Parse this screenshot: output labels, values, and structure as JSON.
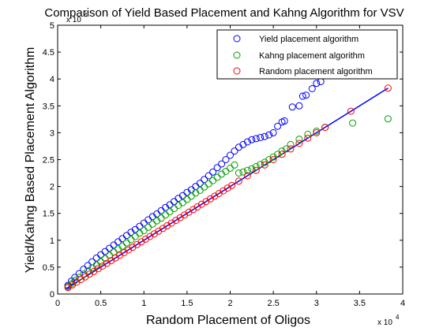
{
  "chart_data": {
    "type": "scatter",
    "title": "Comparison of Yield Based Placement and Kahng Algorithm for VSV",
    "xlabel": "Random Placement of Oligos",
    "ylabel": "Yield/Kahng Based Placement Algorithm",
    "x_multiplier_label": "x 10",
    "x_multiplier_exp": "4",
    "y_multiplier_label": "x 10",
    "y_multiplier_exp": "4",
    "xlim": [
      0,
      40000
    ],
    "ylim": [
      0,
      50000
    ],
    "xticks": [
      0,
      5000,
      10000,
      15000,
      20000,
      25000,
      30000,
      35000,
      40000
    ],
    "xtick_labels": [
      "0",
      "0.5",
      "1",
      "1.5",
      "2",
      "2.5",
      "3",
      "3.5",
      "4"
    ],
    "yticks": [
      0,
      5000,
      10000,
      15000,
      20000,
      25000,
      30000,
      35000,
      40000,
      45000,
      50000
    ],
    "ytick_labels": [
      "0",
      "0.5",
      "1",
      "1.5",
      "2",
      "2.5",
      "3",
      "3.5",
      "4",
      "4.5",
      "5"
    ],
    "grid": false,
    "legend_position": "top-right",
    "series": [
      {
        "name": "Yield placement algorithm",
        "color": "#0000ff",
        "marker": "circle",
        "x": [
          1200,
          1600,
          2000,
          2500,
          3000,
          3500,
          4000,
          4500,
          5000,
          5500,
          6000,
          6500,
          7000,
          7500,
          8000,
          8500,
          9000,
          9500,
          10000,
          10500,
          11000,
          11500,
          12000,
          12500,
          13000,
          13500,
          14000,
          14500,
          15000,
          15500,
          16000,
          16500,
          17000,
          17500,
          18000,
          18500,
          19000,
          19500,
          20000,
          20500,
          21000,
          21500,
          22000,
          22500,
          23000,
          23500,
          24000,
          24500,
          25000,
          25500,
          26000,
          26300,
          27200,
          28000,
          28400,
          28800,
          29500,
          30000,
          30500
        ],
        "y": [
          1600,
          2400,
          3100,
          3800,
          4600,
          5300,
          6000,
          6700,
          7300,
          7900,
          8500,
          9100,
          9700,
          10300,
          10900,
          11500,
          12000,
          12600,
          13200,
          13800,
          14400,
          14900,
          15500,
          16100,
          16600,
          17200,
          17800,
          18300,
          18900,
          19400,
          20000,
          20600,
          21300,
          22000,
          22700,
          23500,
          24200,
          25000,
          25800,
          26600,
          27300,
          27800,
          28300,
          28700,
          28900,
          29100,
          29300,
          29600,
          30000,
          31200,
          32000,
          32200,
          34800,
          35000,
          36800,
          37000,
          38200,
          39200,
          39500
        ]
      },
      {
        "name": "Kahng placement algorithm",
        "color": "#00a000",
        "marker": "circle",
        "x": [
          1200,
          1600,
          2000,
          2500,
          3000,
          3500,
          4000,
          4500,
          5000,
          5500,
          6000,
          6500,
          7000,
          7500,
          8000,
          8500,
          9000,
          9500,
          10000,
          10500,
          11000,
          11500,
          12000,
          12500,
          13000,
          13500,
          14000,
          14500,
          15000,
          15500,
          16000,
          16500,
          17000,
          17500,
          18000,
          18500,
          19000,
          19500,
          20000,
          20500,
          21000,
          21500,
          22000,
          22500,
          23000,
          23500,
          24000,
          24500,
          25000,
          25500,
          26000,
          26500,
          27000,
          28000,
          29000,
          30000,
          31000,
          34200,
          38300
        ],
        "y": [
          1400,
          1900,
          2500,
          3100,
          3700,
          4300,
          4900,
          5400,
          6000,
          6600,
          7200,
          7800,
          8400,
          8900,
          9500,
          10100,
          10700,
          11300,
          11800,
          12400,
          13000,
          13600,
          14100,
          14700,
          15300,
          15900,
          16500,
          17000,
          17600,
          18200,
          18800,
          19300,
          19900,
          20500,
          21100,
          21700,
          22300,
          22800,
          23400,
          24000,
          22500,
          22700,
          23000,
          23300,
          23700,
          24100,
          24500,
          25000,
          25500,
          26000,
          26600,
          27000,
          27800,
          28800,
          29700,
          30300,
          31000,
          31800,
          32600
        ]
      },
      {
        "name": "Random placement algorithm",
        "color": "#ff0000",
        "marker": "circle",
        "x": [
          1200,
          1700,
          2200,
          2700,
          3200,
          3700,
          4200,
          4700,
          5200,
          5700,
          6200,
          6700,
          7200,
          7700,
          8200,
          8700,
          9200,
          9700,
          10200,
          10700,
          11200,
          11700,
          12200,
          12700,
          13200,
          13700,
          14200,
          14700,
          15200,
          15700,
          16200,
          16700,
          17200,
          17700,
          18200,
          18700,
          19200,
          19700,
          20200,
          21000,
          22000,
          23000,
          24000,
          25000,
          26000,
          27000,
          28000,
          29000,
          30000,
          31000,
          34000,
          38300
        ],
        "y": [
          1200,
          1700,
          2200,
          2700,
          3200,
          3700,
          4200,
          4700,
          5200,
          5700,
          6200,
          6700,
          7200,
          7700,
          8200,
          8700,
          9200,
          9700,
          10200,
          10700,
          11200,
          11700,
          12200,
          12700,
          13200,
          13700,
          14200,
          14700,
          15200,
          15700,
          16200,
          16700,
          17200,
          17700,
          18200,
          18700,
          19200,
          19700,
          20200,
          21000,
          22000,
          23000,
          24000,
          25000,
          26000,
          27000,
          28000,
          29000,
          30000,
          31000,
          34000,
          38300
        ]
      }
    ],
    "reference_line": {
      "color": "#0000ff",
      "x": [
        1000,
        38300
      ],
      "y": [
        1000,
        38300
      ]
    }
  }
}
